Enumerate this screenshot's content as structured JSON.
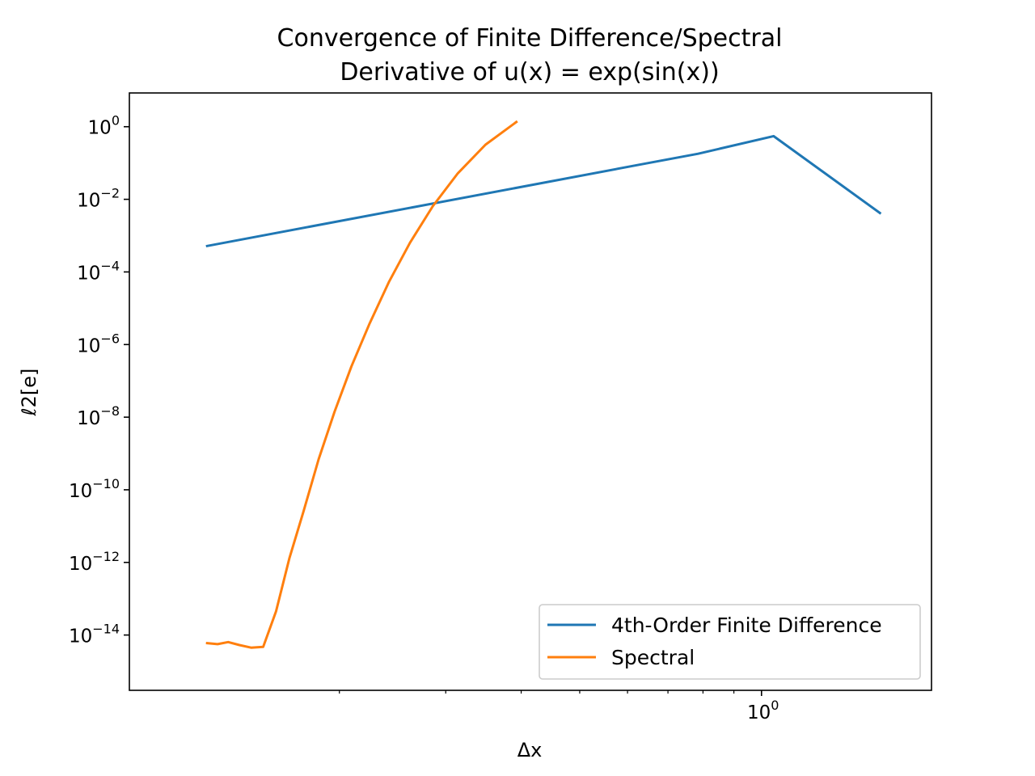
{
  "chart_data": {
    "type": "line",
    "title": "Convergence of Finite Difference/Spectral",
    "subtitle": "Derivative of u(x) = exp(sin(x))",
    "xlabel": "Δx",
    "ylabel": "ℓ2[e]",
    "xscale": "log",
    "yscale": "log",
    "xlim": [
      0.0898,
      1.912
    ],
    "ylim": [
      3e-16,
      8.5
    ],
    "x_ticks_major": [
      {
        "value": 1,
        "label": "10",
        "exp": "0"
      }
    ],
    "y_ticks": [
      {
        "value": 1,
        "label": "10",
        "exp": "0"
      },
      {
        "value": 0.01,
        "label": "10",
        "exp": "−2"
      },
      {
        "value": 0.0001,
        "label": "10",
        "exp": "−4"
      },
      {
        "value": 1e-06,
        "label": "10",
        "exp": "−6"
      },
      {
        "value": 1e-08,
        "label": "10",
        "exp": "−8"
      },
      {
        "value": 1e-10,
        "label": "10",
        "exp": "−10"
      },
      {
        "value": 1e-12,
        "label": "10",
        "exp": "−12"
      },
      {
        "value": 1e-14,
        "label": "10",
        "exp": "−14"
      }
    ],
    "x_minor_ticks": [
      0.2,
      0.3,
      0.4,
      0.5,
      0.6,
      0.7,
      0.8,
      0.9
    ],
    "grid": false,
    "legend_position": "lower-right",
    "series": [
      {
        "name": "4th-Order Finite Difference",
        "color": "#1f77b4",
        "x": [
          0.1208,
          0.6283,
          0.7854,
          1.0472,
          1.5708
        ],
        "y": [
          0.00052,
          0.09,
          0.18,
          0.55,
          0.0042
        ]
      },
      {
        "name": "Spectral",
        "color": "#ff7f0e",
        "x": [
          0.1208,
          0.1257,
          0.1309,
          0.1366,
          0.1428,
          0.1496,
          0.1571,
          0.1653,
          0.1745,
          0.1848,
          0.1963,
          0.2094,
          0.2244,
          0.2417,
          0.2618,
          0.2856,
          0.3142,
          0.3491,
          0.3927,
          0.4488,
          0.5236,
          0.6283,
          0.7854,
          1.0472,
          1.5708
        ],
        "y": [
          6e-15,
          5.6e-15,
          6.4e-15,
          5.3e-15,
          4.5e-15,
          4.7e-15,
          4.5e-14,
          1.3e-12,
          2.6e-11,
          7e-10,
          1.4e-08,
          2.5e-07,
          3.8e-06,
          5.4e-05,
          0.00064,
          0.0065,
          0.052,
          0.32,
          1.35,
          null,
          null,
          null,
          null,
          null,
          null
        ]
      }
    ]
  }
}
